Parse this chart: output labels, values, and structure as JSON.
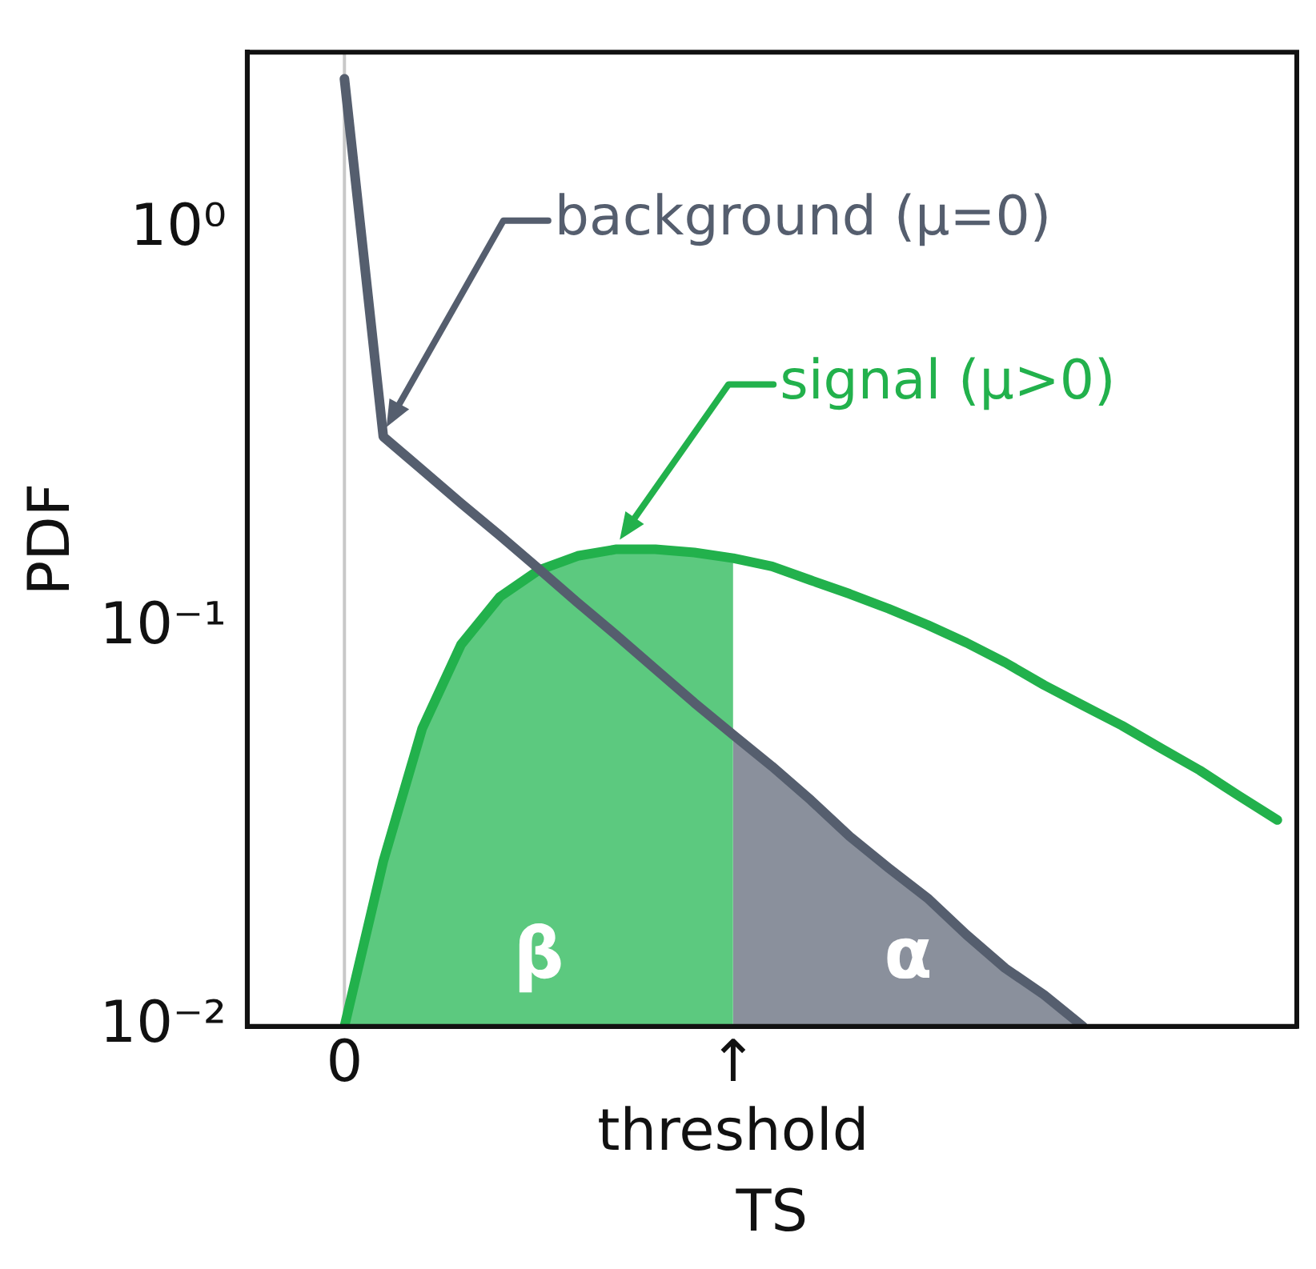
{
  "chart_data": {
    "type": "line",
    "xlabel": "TS",
    "ylabel": "PDF",
    "log": "y",
    "grid": false,
    "legend": false,
    "marker": "none",
    "categories": [
      null,
      null,
      "0",
      null,
      null,
      null,
      null,
      null,
      null,
      null,
      null,
      null,
      "↑\nthreshold",
      null,
      null,
      null,
      null,
      null,
      null,
      null,
      null,
      null,
      null,
      null,
      null,
      null,
      null
    ],
    "ylim": [
      0.01,
      2.8
    ],
    "yticks": [
      {
        "value": 1,
        "label": "10⁰"
      },
      {
        "value": 0.1,
        "label": "10⁻¹"
      },
      {
        "value": 0.01,
        "label": "10⁻²"
      }
    ],
    "ref_lines": [
      {
        "axis": "x",
        "value": "0",
        "color": "#c8c8c8"
      }
    ],
    "series": [
      {
        "name": "β",
        "type": "area",
        "color": "#5cc97f",
        "values": [
          null,
          null,
          0.01,
          0.026,
          0.056,
          0.091,
          0.12,
          0.14,
          0.152,
          0.158,
          0.158,
          0.155,
          0.15,
          null,
          null,
          null,
          null,
          null,
          null,
          null,
          null,
          null,
          null,
          null,
          null,
          null,
          null
        ]
      },
      {
        "name": "α",
        "type": "area",
        "color": "#8a909c",
        "values": [
          null,
          null,
          null,
          null,
          null,
          null,
          null,
          null,
          null,
          null,
          null,
          null,
          0.054,
          0.045,
          0.037,
          0.03,
          0.025,
          0.021,
          0.017,
          0.014,
          0.012,
          0.01,
          null,
          null,
          null,
          null,
          null
        ]
      },
      {
        "name": "background (μ=0)",
        "color": "#555e6e",
        "values": [
          null,
          null,
          2.4,
          0.303,
          0.25,
          0.206,
          0.171,
          0.141,
          0.116,
          0.096,
          0.079,
          0.065,
          0.054,
          0.045,
          0.037,
          0.03,
          0.025,
          0.021,
          0.017,
          0.014,
          0.012,
          0.01,
          null,
          null,
          null,
          null,
          null
        ]
      },
      {
        "name": "signal (μ>0)",
        "color": "#22b14c",
        "values": [
          null,
          null,
          0.01,
          0.026,
          0.056,
          0.091,
          0.12,
          0.14,
          0.152,
          0.158,
          0.158,
          0.155,
          0.15,
          0.143,
          0.132,
          0.122,
          0.112,
          0.102,
          0.092,
          0.082,
          0.072,
          0.064,
          0.057,
          0.05,
          0.044,
          0.038,
          0.033
        ]
      }
    ]
  }
}
